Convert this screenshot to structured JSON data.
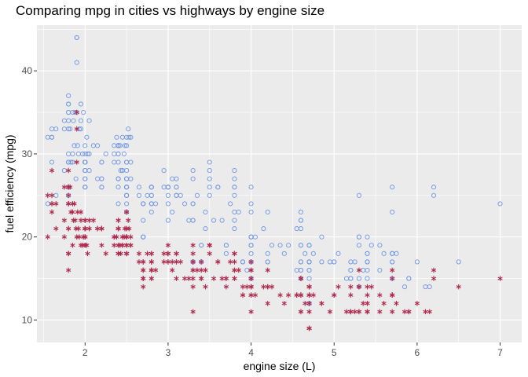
{
  "chart_data": {
    "type": "scatter",
    "title": "Comparing mpg in cities vs highways by engine size",
    "xlabel": "engine size (L)",
    "ylabel": "fuel efficiency (mpg)",
    "xlim": [
      1.42,
      7.26
    ],
    "ylim": [
      7.3,
      45.5
    ],
    "xticks": [
      2,
      3,
      4,
      5,
      6,
      7
    ],
    "yticks": [
      10,
      20,
      30,
      40
    ],
    "grid": true,
    "legend": "none",
    "series": [
      {
        "marker": "open-circle",
        "color": "#6f95e6",
        "x": [
          1.8,
          1.8,
          2.0,
          2.0,
          2.8,
          2.8,
          3.1,
          1.8,
          1.8,
          2.0,
          2.0,
          2.8,
          2.8,
          3.1,
          3.1,
          2.8,
          3.1,
          4.2,
          5.3,
          5.3,
          5.3,
          5.7,
          6.0,
          5.7,
          5.7,
          6.2,
          6.2,
          7.0,
          5.3,
          5.3,
          5.7,
          6.5,
          2.4,
          2.4,
          3.1,
          3.5,
          3.6,
          2.4,
          3.0,
          3.3,
          3.3,
          3.3,
          3.3,
          3.3,
          3.8,
          3.8,
          3.8,
          4.0,
          3.7,
          3.7,
          3.9,
          3.9,
          4.7,
          4.7,
          4.7,
          5.2,
          5.2,
          3.9,
          4.7,
          4.7,
          4.7,
          5.2,
          5.7,
          5.9,
          4.7,
          4.7,
          4.7,
          4.7,
          4.7,
          4.7,
          5.2,
          5.2,
          5.7,
          5.9,
          4.6,
          5.4,
          5.4,
          4.0,
          4.0,
          4.0,
          4.0,
          4.6,
          5.0,
          4.2,
          4.2,
          4.6,
          4.6,
          4.6,
          5.4,
          5.4,
          3.8,
          3.8,
          4.0,
          4.0,
          4.6,
          4.6,
          4.6,
          4.6,
          5.4,
          1.6,
          1.6,
          1.6,
          1.6,
          1.6,
          1.8,
          1.8,
          1.8,
          2.0,
          2.4,
          2.4,
          2.4,
          2.4,
          2.5,
          2.5,
          3.3,
          2.0,
          2.0,
          2.0,
          2.0,
          2.7,
          2.7,
          2.7,
          3.0,
          3.7,
          4.0,
          4.7,
          4.7,
          4.7,
          5.7,
          6.1,
          4.0,
          4.2,
          4.4,
          4.6,
          5.4,
          5.4,
          5.4,
          4.0,
          4.0,
          4.6,
          5.0,
          2.4,
          2.4,
          2.5,
          2.5,
          3.5,
          3.5,
          3.0,
          3.0,
          3.5,
          3.3,
          3.3,
          4.0,
          5.6,
          3.1,
          3.8,
          3.8,
          3.8,
          5.3,
          2.5,
          2.5,
          2.5,
          2.5,
          2.5,
          2.5,
          2.2,
          2.2,
          2.5,
          2.5,
          2.5,
          2.5,
          2.5,
          2.5,
          2.7,
          2.7,
          3.4,
          3.4,
          4.0,
          4.7,
          2.2,
          2.2,
          2.4,
          2.4,
          3.0,
          3.0,
          3.5,
          2.2,
          2.2,
          2.4,
          2.4,
          3.0,
          3.0,
          3.3,
          1.8,
          1.8,
          1.8,
          1.8,
          1.8,
          4.7,
          5.7,
          2.7,
          2.7,
          2.7,
          3.4,
          3.4,
          4.0,
          4.0,
          2.0,
          2.0,
          2.0,
          2.0,
          2.8,
          1.9,
          2.0,
          2.0,
          2.0,
          2.0,
          2.5,
          2.5,
          2.8,
          2.8,
          1.9,
          1.9,
          2.0,
          2.0,
          2.5,
          2.5,
          1.8,
          1.8,
          2.0,
          2.0,
          2.8,
          2.8,
          3.6,
          1.9,
          1.95,
          2.1,
          2.05,
          2.55,
          2.45,
          3.2,
          3.35,
          2.95,
          3.05,
          4.55,
          4.85,
          5.15,
          5.35,
          5.55,
          2.25,
          2.35,
          1.85,
          1.75,
          2.65,
          1.95,
          1.85,
          2.05,
          2.45,
          2.75,
          3.25,
          3.45,
          3.75,
          4.05,
          4.25,
          4.75,
          5.05,
          5.45,
          5.85,
          6.15,
          1.55,
          1.65,
          1.75,
          2.15,
          2.35,
          2.55,
          2.85,
          3.15,
          3.45,
          3.65,
          3.85,
          4.15,
          4.35,
          4.65,
          4.95,
          5.25,
          5.55,
          5.75,
          1.55,
          1.65,
          1.75,
          1.85,
          1.95,
          2.05,
          2.15,
          2.35,
          2.45,
          2.55,
          2.65,
          2.95,
          3.05,
          3.55,
          3.95,
          4.45,
          4.55,
          4.85,
          1.82,
          1.83,
          1.87,
          1.88,
          1.92,
          1.93,
          1.97,
          1.98,
          2.02,
          2.03,
          2.48,
          2.47,
          2.52,
          2.53,
          2.38,
          2.42,
          2.43,
          1.89,
          1.91,
          1.86
        ],
        "y": [
          29,
          29,
          31,
          30,
          26,
          26,
          27,
          26,
          25,
          28,
          27,
          25,
          25,
          25,
          25,
          24,
          25,
          23,
          20,
          15,
          20,
          17,
          17,
          26,
          23,
          26,
          25,
          24,
          19,
          14,
          15,
          17,
          27,
          30,
          26,
          29,
          26,
          24,
          24,
          22,
          22,
          24,
          24,
          17,
          22,
          21,
          23,
          23,
          19,
          18,
          17,
          17,
          19,
          19,
          12,
          17,
          15,
          17,
          17,
          12,
          17,
          16,
          18,
          15,
          16,
          12,
          17,
          17,
          16,
          12,
          15,
          16,
          17,
          15,
          17,
          17,
          18,
          17,
          19,
          17,
          19,
          19,
          17,
          17,
          17,
          16,
          16,
          17,
          15,
          17,
          26,
          25,
          26,
          24,
          21,
          22,
          23,
          22,
          20,
          33,
          32,
          32,
          29,
          32,
          34,
          36,
          36,
          29,
          26,
          27,
          30,
          31,
          26,
          26,
          28,
          26,
          29,
          28,
          27,
          24,
          24,
          24,
          22,
          19,
          20,
          17,
          12,
          19,
          18,
          14,
          15,
          18,
          18,
          15,
          17,
          16,
          18,
          17,
          19,
          19,
          17,
          29,
          27,
          31,
          32,
          27,
          26,
          26,
          25,
          25,
          17,
          17,
          20,
          18,
          26,
          26,
          27,
          28,
          25,
          25,
          24,
          27,
          25,
          26,
          23,
          26,
          26,
          26,
          26,
          25,
          27,
          25,
          27,
          20,
          20,
          19,
          17,
          20,
          17,
          29,
          27,
          31,
          31,
          26,
          26,
          28,
          27,
          29,
          31,
          31,
          26,
          26,
          27,
          30,
          33,
          35,
          37,
          35,
          15,
          18,
          20,
          20,
          22,
          17,
          19,
          18,
          20,
          29,
          26,
          29,
          29,
          24,
          44,
          29,
          26,
          29,
          29,
          29,
          29,
          23,
          24,
          44,
          41,
          29,
          26,
          28,
          29,
          29,
          29,
          28,
          29,
          26,
          26,
          26,
          35,
          34,
          31,
          30,
          32,
          28,
          24,
          25,
          26,
          27,
          16,
          17,
          15,
          16,
          19,
          30,
          31,
          29,
          33,
          25,
          36,
          35,
          34,
          28,
          25,
          22,
          23,
          24,
          20,
          19,
          18,
          18,
          19,
          14,
          14,
          32,
          33,
          28,
          27,
          30,
          29,
          24,
          25,
          21,
          22,
          23,
          21,
          19,
          18,
          17,
          17,
          16,
          18,
          24,
          25,
          34,
          30,
          33,
          28,
          31,
          29,
          32,
          27,
          26,
          28,
          23,
          22,
          16,
          19,
          21,
          20,
          33,
          29,
          31,
          35,
          30,
          33,
          30,
          35,
          32,
          30,
          31,
          30,
          33,
          32,
          32,
          31,
          28,
          27,
          31,
          34
        ]
      },
      {
        "marker": "asterisk",
        "color": "#b02a4f",
        "x": [
          1.8,
          1.8,
          2.0,
          2.0,
          2.8,
          2.8,
          3.1,
          1.8,
          1.8,
          2.0,
          2.0,
          2.8,
          2.8,
          3.1,
          3.1,
          2.8,
          3.1,
          4.2,
          5.3,
          5.3,
          5.3,
          5.7,
          6.0,
          5.7,
          5.7,
          6.2,
          6.2,
          7.0,
          5.3,
          5.3,
          5.7,
          6.5,
          2.4,
          2.4,
          3.1,
          3.5,
          3.6,
          2.4,
          3.0,
          3.3,
          3.3,
          3.3,
          3.3,
          3.3,
          3.8,
          3.8,
          3.8,
          4.0,
          3.7,
          3.7,
          3.9,
          3.9,
          4.7,
          4.7,
          4.7,
          5.2,
          5.2,
          3.9,
          4.7,
          4.7,
          4.7,
          5.2,
          5.7,
          5.9,
          4.7,
          4.7,
          4.7,
          4.7,
          4.7,
          4.7,
          5.2,
          5.2,
          5.7,
          5.9,
          4.6,
          5.4,
          5.4,
          4.0,
          4.0,
          4.0,
          4.0,
          4.6,
          5.0,
          4.2,
          4.2,
          4.6,
          4.6,
          4.6,
          5.4,
          5.4,
          3.8,
          3.8,
          4.0,
          4.0,
          4.6,
          4.6,
          4.6,
          4.6,
          5.4,
          1.6,
          1.6,
          1.6,
          1.6,
          1.6,
          1.8,
          1.8,
          1.8,
          2.0,
          2.4,
          2.4,
          2.4,
          2.4,
          2.5,
          2.5,
          3.3,
          2.0,
          2.0,
          2.0,
          2.0,
          2.7,
          2.7,
          2.7,
          3.0,
          3.7,
          4.0,
          4.7,
          4.7,
          4.7,
          5.7,
          6.1,
          4.0,
          4.2,
          4.4,
          4.6,
          5.4,
          5.4,
          5.4,
          4.0,
          4.0,
          4.6,
          5.0,
          2.4,
          2.4,
          2.5,
          2.5,
          3.5,
          3.5,
          3.0,
          3.0,
          3.5,
          3.3,
          3.3,
          4.0,
          5.6,
          3.1,
          3.8,
          3.8,
          3.8,
          5.3,
          2.5,
          2.5,
          2.5,
          2.5,
          2.5,
          2.5,
          2.2,
          2.2,
          2.5,
          2.5,
          2.5,
          2.5,
          2.5,
          2.5,
          2.7,
          2.7,
          3.4,
          3.4,
          4.0,
          4.7,
          2.2,
          2.2,
          2.4,
          2.4,
          3.0,
          3.0,
          3.5,
          2.2,
          2.2,
          2.4,
          2.4,
          3.0,
          3.0,
          3.3,
          1.8,
          1.8,
          1.8,
          1.8,
          1.8,
          4.7,
          5.7,
          2.7,
          2.7,
          2.7,
          3.4,
          3.4,
          4.0,
          4.0,
          2.0,
          2.0,
          2.0,
          2.0,
          2.8,
          1.9,
          2.0,
          2.0,
          2.0,
          2.0,
          2.5,
          2.5,
          2.8,
          2.8,
          1.9,
          1.9,
          2.0,
          2.0,
          2.5,
          2.5,
          1.8,
          1.8,
          2.0,
          2.0,
          2.8,
          2.8,
          3.6,
          1.9,
          1.95,
          2.1,
          2.05,
          2.55,
          2.45,
          3.2,
          3.35,
          2.95,
          3.05,
          4.55,
          4.85,
          5.15,
          5.35,
          5.55,
          2.25,
          2.35,
          1.85,
          1.75,
          2.65,
          1.95,
          1.85,
          2.05,
          2.45,
          2.75,
          3.25,
          3.45,
          3.75,
          4.05,
          4.25,
          4.75,
          5.05,
          5.45,
          5.85,
          6.15,
          1.55,
          1.65,
          1.75,
          2.15,
          2.35,
          2.55,
          2.85,
          3.15,
          3.45,
          3.65,
          3.85,
          4.15,
          4.35,
          4.65,
          4.95,
          5.25,
          5.55,
          5.75,
          1.55,
          1.65,
          1.75,
          1.85,
          1.95,
          2.05,
          2.15,
          2.35,
          2.45,
          2.55,
          2.65,
          2.95,
          3.05,
          3.55,
          3.95,
          4.45,
          4.55,
          4.85,
          1.82,
          1.83,
          1.87,
          1.88,
          1.92,
          1.93,
          1.97,
          1.98,
          2.02,
          2.03,
          2.48,
          2.47,
          2.52,
          2.53,
          2.38,
          2.42,
          2.43,
          1.89,
          1.91,
          1.86
        ],
        "y": [
          18,
          21,
          20,
          21,
          16,
          18,
          18,
          18,
          16,
          20,
          19,
          15,
          17,
          17,
          15,
          15,
          17,
          16,
          14,
          11,
          14,
          13,
          12,
          16,
          15,
          16,
          15,
          15,
          14,
          11,
          11,
          14,
          19,
          22,
          18,
          18,
          17,
          18,
          17,
          16,
          16,
          17,
          17,
          11,
          15,
          15,
          16,
          16,
          15,
          14,
          13,
          14,
          14,
          14,
          9,
          14,
          13,
          13,
          13,
          9,
          13,
          11,
          13,
          11,
          12,
          9,
          13,
          13,
          12,
          9,
          11,
          11,
          13,
          11,
          11,
          11,
          12,
          14,
          15,
          14,
          13,
          13,
          13,
          14,
          14,
          13,
          13,
          13,
          11,
          13,
          18,
          18,
          17,
          16,
          15,
          15,
          15,
          15,
          14,
          28,
          24,
          25,
          23,
          24,
          26,
          25,
          24,
          21,
          18,
          18,
          21,
          21,
          18,
          18,
          19,
          19,
          19,
          20,
          20,
          17,
          16,
          17,
          17,
          15,
          15,
          14,
          9,
          14,
          13,
          11,
          11,
          12,
          12,
          11,
          11,
          11,
          12,
          14,
          13,
          13,
          13,
          21,
          19,
          23,
          23,
          19,
          19,
          18,
          19,
          19,
          14,
          15,
          14,
          12,
          18,
          16,
          17,
          18,
          16,
          18,
          18,
          20,
          19,
          20,
          18,
          21,
          19,
          19,
          19,
          20,
          20,
          19,
          20,
          15,
          16,
          15,
          15,
          16,
          14,
          21,
          21,
          21,
          21,
          18,
          18,
          19,
          21,
          21,
          21,
          22,
          18,
          18,
          18,
          24,
          24,
          26,
          28,
          26,
          11,
          13,
          15,
          14,
          15,
          16,
          17,
          14,
          15,
          21,
          19,
          21,
          22,
          17,
          33,
          21,
          19,
          22,
          21,
          21,
          21,
          16,
          17,
          35,
          29,
          21,
          19,
          20,
          20,
          21,
          18,
          19,
          21,
          16,
          18,
          17,
          20,
          19,
          22,
          21,
          20,
          19,
          15,
          16,
          18,
          17,
          13,
          12,
          11,
          12,
          13,
          18,
          19,
          19,
          20,
          17,
          23,
          24,
          22,
          20,
          18,
          15,
          16,
          17,
          13,
          14,
          13,
          14,
          14,
          11,
          11,
          25,
          24,
          22,
          21,
          20,
          19,
          16,
          17,
          14,
          15,
          16,
          14,
          13,
          12,
          11,
          11,
          11,
          12,
          20,
          21,
          26,
          23,
          22,
          21,
          21,
          20,
          19,
          19,
          18,
          17,
          16,
          15,
          14,
          13,
          13,
          12,
          26,
          23,
          24,
          22,
          21,
          20,
          19,
          20,
          19,
          18,
          21,
          20,
          22,
          21,
          20,
          19,
          18,
          21,
          23,
          22
        ]
      }
    ]
  }
}
